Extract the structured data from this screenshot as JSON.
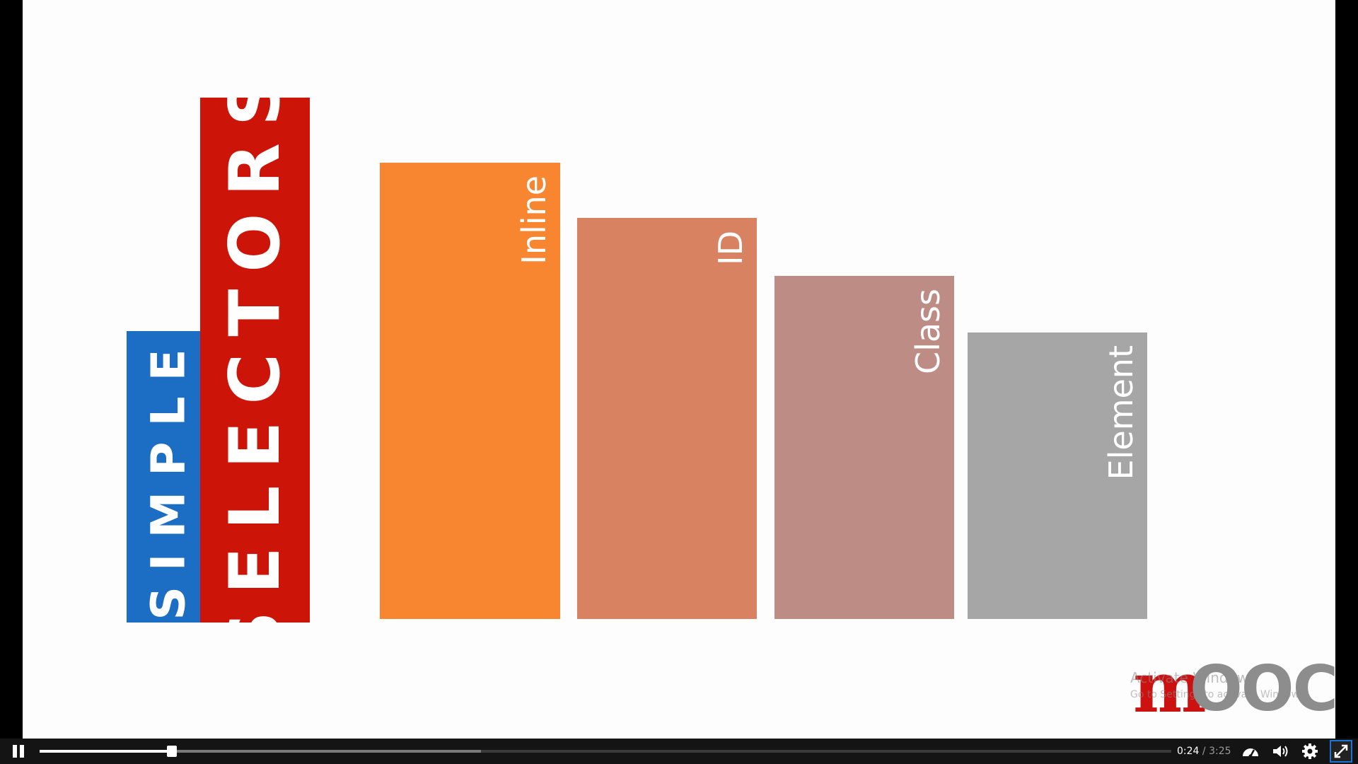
{
  "slide": {
    "title_word_1": "SIMPLE",
    "title_word_2": "SELECTORS",
    "bars": [
      {
        "label": "Inline",
        "color": "#f8852f"
      },
      {
        "label": "ID",
        "color": "#d98261"
      },
      {
        "label": "Class",
        "color": "#bd8c84"
      },
      {
        "label": "Element",
        "color": "#a6a6a6"
      }
    ],
    "title_colors": {
      "simple_box": "#1c6ec4",
      "selectors_box": "#cc1508"
    }
  },
  "watermark": {
    "title": "Activate Windows",
    "subtitle": "Go to Settings to activate Windows."
  },
  "logo": {
    "first_letter": "m",
    "rest": "OOCA",
    "colors": {
      "first": "#cc1111",
      "rest": "#8d8d8d"
    }
  },
  "player": {
    "current_time": "0:24",
    "separator": "/",
    "duration": "3:25",
    "played_fraction": 0.117,
    "loaded_fraction": 0.39,
    "icons": {
      "play_pause": "pause-icon",
      "speed": "speed-gauge-icon",
      "volume": "volume-icon",
      "settings": "gear-icon",
      "fullscreen": "exit-fullscreen-icon"
    }
  }
}
